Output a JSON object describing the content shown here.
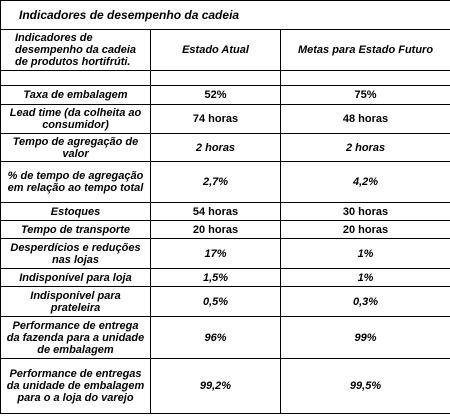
{
  "table": {
    "title": "Indicadores de desempenho da cadeia",
    "headers": [
      "Indicadores de desempenho da cadeia de produtos hortifrúti.",
      "Estado Atual",
      "Metas para Estado Futuro"
    ],
    "rows": [
      [
        "Taxa de embalagem",
        "52%",
        "75%"
      ],
      [
        "Lead time (da colheita ao consumidor)",
        "74 horas",
        "48 horas"
      ],
      [
        "Tempo de agregação de valor",
        "2 horas",
        "2 horas"
      ],
      [
        "% de tempo de agregação em relação ao tempo total",
        "2,7%",
        "4,2%"
      ],
      [
        "Estoques",
        "54 horas",
        "30 horas"
      ],
      [
        "Tempo de transporte",
        "20 horas",
        "20 horas"
      ],
      [
        "Desperdícios e reduções nas lojas",
        "17%",
        "1%"
      ],
      [
        "Indisponível para loja",
        "1,5%",
        "1%"
      ],
      [
        "Indisponível para prateleira",
        "0,5%",
        "0,3%"
      ],
      [
        "Performance de entrega da fazenda para a unidade de embalagem",
        "96%",
        "99%"
      ],
      [
        "Performance de entregas da unidade de embalagem para o a loja do varejo",
        "99,2%",
        "99,5%"
      ]
    ]
  }
}
